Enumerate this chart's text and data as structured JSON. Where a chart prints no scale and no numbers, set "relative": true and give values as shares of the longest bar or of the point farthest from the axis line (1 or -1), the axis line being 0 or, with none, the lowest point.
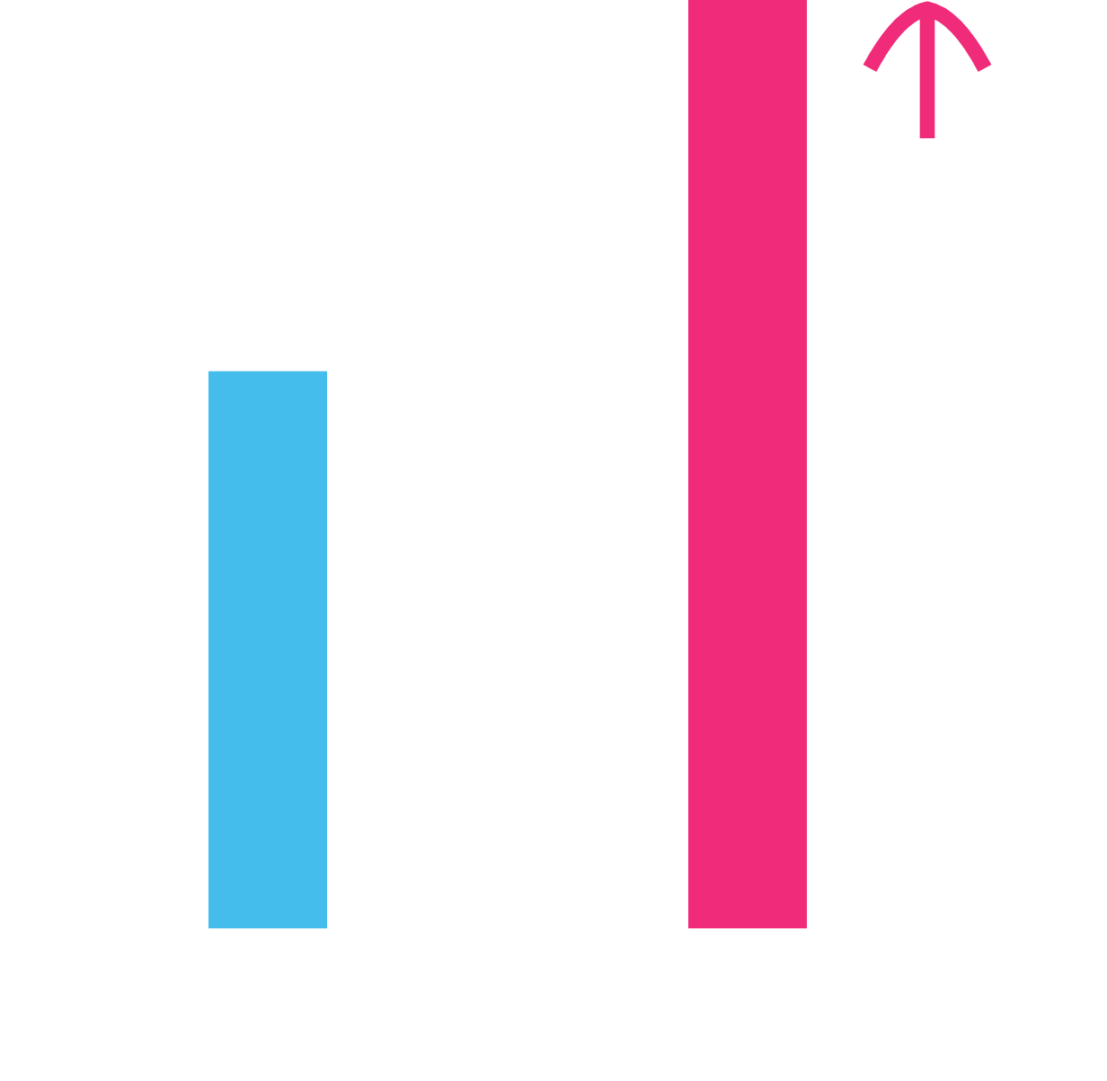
{
  "chart_data": {
    "type": "bar",
    "relative": true,
    "categories": [
      null,
      null
    ],
    "values": [
      0.6,
      1
    ],
    "colors": [
      "#45bdec",
      "#ef2b7a"
    ]
  }
}
